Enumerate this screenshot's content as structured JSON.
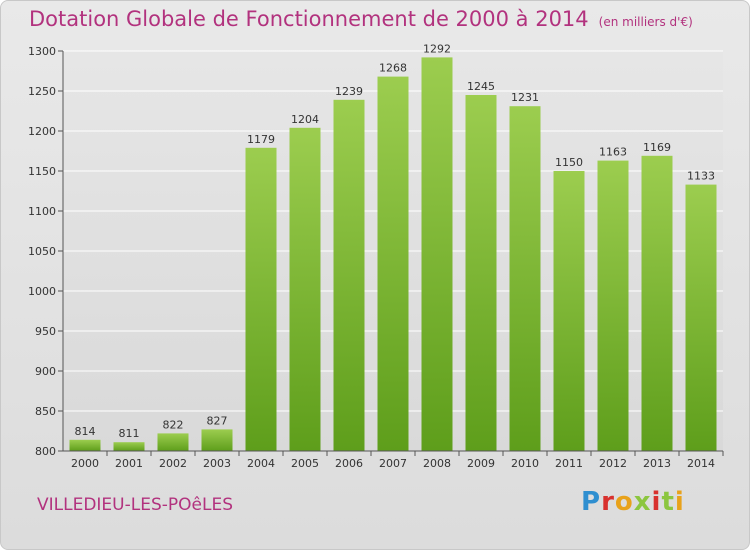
{
  "header": {
    "title": "Dotation Globale de Fonctionnement de 2000 à 2014",
    "subtitle": "(en milliers d'€)"
  },
  "footer": {
    "commune": "VILLEDIEU-LES-POêLES",
    "logo": "Proxiti"
  },
  "colors": {
    "bar_top": "#9ccd4f",
    "bar_bottom": "#5e9e1b",
    "title": "#b2327e"
  },
  "chart_data": {
    "type": "bar",
    "title": "Dotation Globale de Fonctionnement de 2000 à 2014",
    "subtitle": "(en milliers d'€)",
    "categories": [
      "2000",
      "2001",
      "2002",
      "2003",
      "2004",
      "2005",
      "2006",
      "2007",
      "2008",
      "2009",
      "2010",
      "2011",
      "2012",
      "2013",
      "2014"
    ],
    "values": [
      814,
      811,
      822,
      827,
      1179,
      1204,
      1239,
      1268,
      1292,
      1245,
      1231,
      1150,
      1163,
      1169,
      1133
    ],
    "ylim": [
      800,
      1300
    ],
    "yticks": [
      800,
      850,
      900,
      950,
      1000,
      1050,
      1100,
      1150,
      1200,
      1250,
      1300
    ],
    "grid": true,
    "legend": "none"
  }
}
